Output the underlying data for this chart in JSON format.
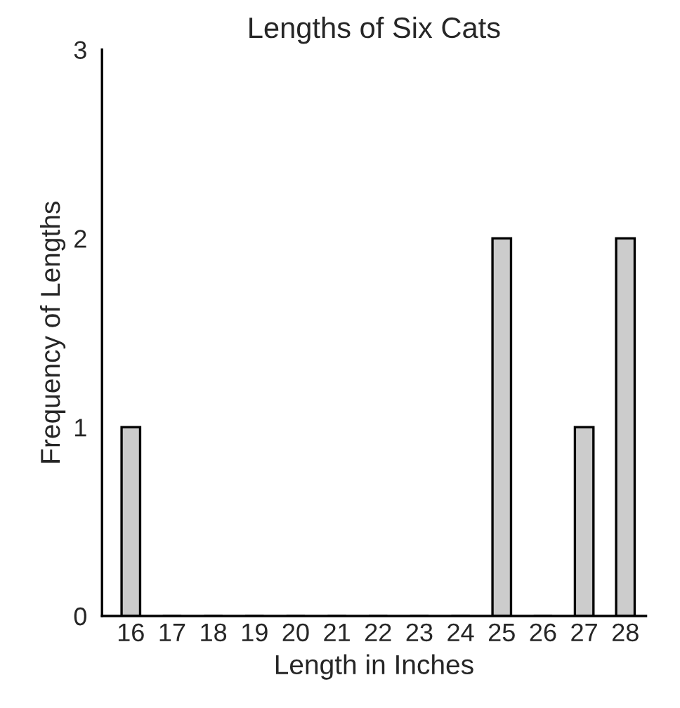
{
  "chart_data": {
    "type": "bar",
    "title": "Lengths of Six Cats",
    "xlabel": "Length in Inches",
    "ylabel": "Frequency of Lengths",
    "categories": [
      "16",
      "17",
      "18",
      "19",
      "20",
      "21",
      "22",
      "23",
      "24",
      "25",
      "26",
      "27",
      "28"
    ],
    "values": [
      1,
      0,
      0,
      0,
      0,
      0,
      0,
      0,
      0,
      2,
      0,
      1,
      2
    ],
    "color": "#cccccc",
    "ylim": [
      0,
      3
    ],
    "yticks": [
      0,
      1,
      2,
      3
    ],
    "grid": false,
    "legend": false
  }
}
